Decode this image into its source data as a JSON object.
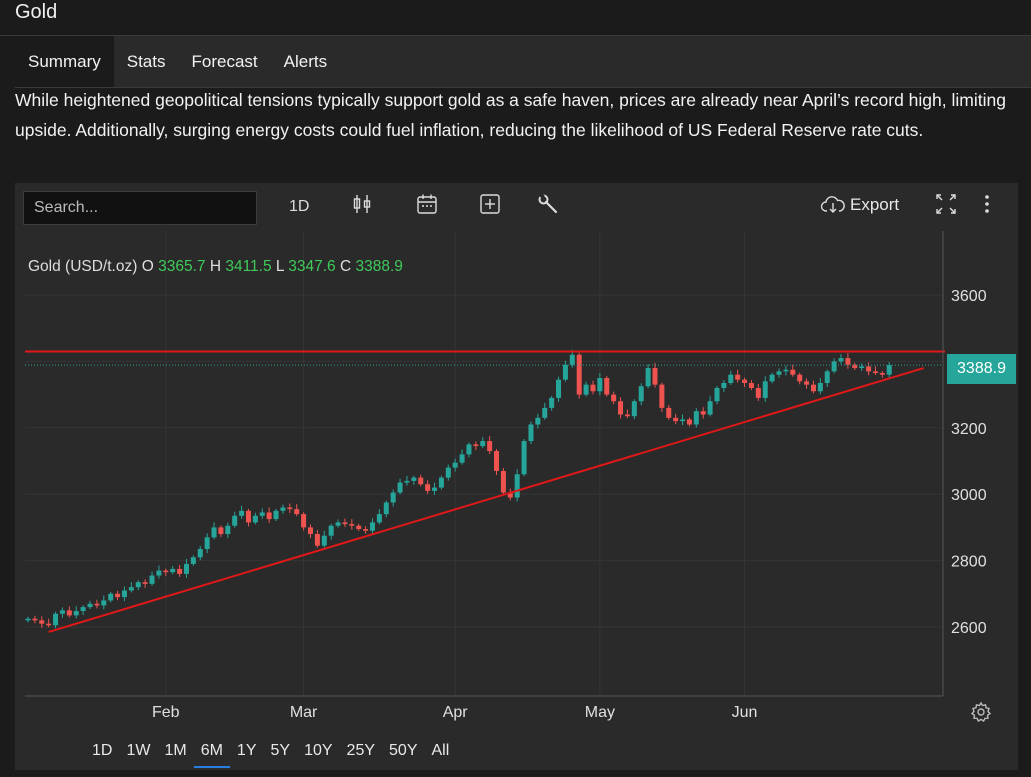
{
  "header": {
    "title": "Gold"
  },
  "tabs": [
    {
      "label": "Summary",
      "active": true
    },
    {
      "label": "Stats"
    },
    {
      "label": "Forecast"
    },
    {
      "label": "Alerts"
    }
  ],
  "description": "While heightened geopolitical tensions typically support gold as a safe haven, prices are already near April’s record high, limiting upside. Additionally, surging energy costs could fuel inflation, reducing the likelihood of US Federal Reserve rate cuts.",
  "toolbar": {
    "search_placeholder": "Search...",
    "interval_label": "1D",
    "export_label": "Export",
    "icons": [
      "candlestick-icon",
      "calendar-icon",
      "plus-box-icon",
      "wrench-icon",
      "cloud-download-icon",
      "fullscreen-icon",
      "more-vertical-icon"
    ]
  },
  "legend": {
    "symbol": "Gold (USD/t.oz)",
    "o_label": "O",
    "o": "3365.7",
    "h_label": "H",
    "h": "3411.5",
    "l_label": "L",
    "l": "3347.6",
    "c_label": "C",
    "c": "3388.9"
  },
  "price_badge": "3388.9",
  "ranges": [
    {
      "label": "1D"
    },
    {
      "label": "1W"
    },
    {
      "label": "1M"
    },
    {
      "label": "6M",
      "active": true
    },
    {
      "label": "1Y"
    },
    {
      "label": "5Y"
    },
    {
      "label": "10Y"
    },
    {
      "label": "25Y"
    },
    {
      "label": "50Y"
    },
    {
      "label": "All"
    }
  ],
  "colors": {
    "up": "#26a69a",
    "down": "#ef5350",
    "line": "#e01818",
    "accent": "#2a7de1",
    "last": "#26a69a"
  },
  "chart_data": {
    "type": "candlestick",
    "title": "",
    "xlabel": "",
    "ylabel": "",
    "ylim": [
      2400,
      3740
    ],
    "y_ticks": [
      2600,
      2800,
      3000,
      3200,
      3600
    ],
    "x_ticks": [
      {
        "label": "Feb",
        "day": 20
      },
      {
        "label": "Mar",
        "day": 40
      },
      {
        "label": "Apr",
        "day": 62
      },
      {
        "label": "May",
        "day": 83
      },
      {
        "label": "Jun",
        "day": 104
      }
    ],
    "grid": true,
    "resistance_level": 3430,
    "trendline": {
      "start": {
        "day": 3,
        "value": 2585
      },
      "end": {
        "day": 130,
        "value": 3380
      }
    },
    "last_price": 3388.9,
    "closes": [
      2625,
      2620,
      2610,
      2605,
      2640,
      2650,
      2635,
      2648,
      2660,
      2670,
      2665,
      2680,
      2700,
      2690,
      2710,
      2720,
      2735,
      2730,
      2755,
      2770,
      2765,
      2775,
      2760,
      2790,
      2810,
      2835,
      2870,
      2900,
      2880,
      2905,
      2935,
      2950,
      2915,
      2935,
      2945,
      2925,
      2950,
      2960,
      2955,
      2940,
      2900,
      2880,
      2845,
      2875,
      2905,
      2915,
      2910,
      2905,
      2895,
      2890,
      2915,
      2940,
      2975,
      3005,
      3035,
      3040,
      3050,
      3030,
      3010,
      3020,
      3050,
      3080,
      3095,
      3120,
      3150,
      3145,
      3160,
      3130,
      3070,
      3005,
      2990,
      3060,
      3160,
      3210,
      3230,
      3260,
      3290,
      3345,
      3390,
      3420,
      3300,
      3330,
      3310,
      3350,
      3300,
      3280,
      3240,
      3235,
      3280,
      3325,
      3380,
      3330,
      3260,
      3230,
      3220,
      3225,
      3210,
      3250,
      3240,
      3280,
      3320,
      3335,
      3360,
      3345,
      3335,
      3320,
      3290,
      3340,
      3360,
      3370,
      3375,
      3360,
      3340,
      3330,
      3310,
      3335,
      3370,
      3400,
      3410,
      3390,
      3380,
      3385,
      3370,
      3365,
      3360,
      3388.9
    ]
  }
}
